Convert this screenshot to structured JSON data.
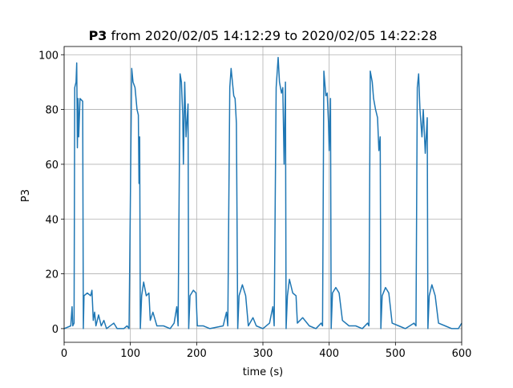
{
  "chart_data": {
    "type": "line",
    "title": [
      "P3",
      "from 2020/02/05 14:12:29 to 2020/02/05 14:22:28"
    ],
    "xlabel": "time (s)",
    "ylabel": "P3",
    "x": [
      0,
      10,
      12,
      13,
      15,
      16,
      18,
      19,
      20,
      21,
      22,
      24,
      28,
      29,
      30,
      35,
      40,
      42,
      44,
      46,
      48,
      52,
      56,
      60,
      64,
      75,
      80,
      90,
      95,
      98,
      102,
      104,
      107,
      110,
      112,
      113,
      114,
      115,
      117,
      120,
      124,
      128,
      130,
      134,
      140,
      150,
      160,
      166,
      170,
      172,
      175,
      177,
      179,
      180,
      182,
      184,
      187,
      188,
      190,
      195,
      199,
      201,
      210,
      220,
      240,
      245,
      247,
      250,
      252,
      254,
      256,
      258,
      260,
      262,
      264,
      269,
      274,
      278,
      285,
      290,
      300,
      310,
      315,
      317,
      320,
      323,
      325,
      328,
      330,
      332,
      334,
      335,
      337,
      340,
      345,
      350,
      352,
      360,
      370,
      380,
      388,
      390,
      392,
      395,
      397,
      399,
      400,
      402,
      403,
      405,
      410,
      415,
      420,
      430,
      440,
      450,
      458,
      460,
      462,
      465,
      467,
      470,
      473,
      475,
      477,
      478,
      480,
      485,
      490,
      495,
      505,
      515,
      528,
      531,
      533,
      535,
      537,
      540,
      542,
      545,
      548,
      549,
      551,
      555,
      560,
      565,
      575,
      585,
      595,
      600
    ],
    "values": [
      0,
      1,
      8,
      1,
      2,
      88,
      90,
      97,
      66,
      84,
      70,
      84,
      83,
      0,
      12,
      13,
      12,
      14,
      3,
      6,
      1,
      5,
      1,
      3,
      0,
      2,
      0,
      0,
      1,
      0,
      95,
      90,
      88,
      80,
      78,
      53,
      70,
      0,
      12,
      17,
      12,
      13,
      3,
      6,
      1,
      1,
      0,
      2,
      8,
      1,
      93,
      90,
      78,
      60,
      90,
      70,
      82,
      0,
      12,
      14,
      13,
      1,
      1,
      0,
      1,
      6,
      1,
      88,
      95,
      90,
      85,
      84,
      75,
      0,
      12,
      16,
      12,
      1,
      4,
      1,
      0,
      2,
      8,
      1,
      88,
      99,
      90,
      86,
      88,
      60,
      90,
      0,
      12,
      18,
      13,
      12,
      2,
      4,
      1,
      0,
      2,
      1,
      94,
      85,
      86,
      75,
      65,
      84,
      0,
      13,
      15,
      13,
      3,
      1,
      1,
      0,
      2,
      1,
      94,
      90,
      84,
      80,
      77,
      65,
      70,
      0,
      12,
      15,
      13,
      2,
      1,
      0,
      2,
      1,
      88,
      93,
      80,
      70,
      80,
      64,
      77,
      0,
      12,
      16,
      12,
      2,
      1,
      0,
      0,
      2
    ],
    "color": "#1f77b4",
    "xlim": [
      0,
      600
    ],
    "xticks": [
      0,
      100,
      200,
      300,
      400,
      500,
      600
    ],
    "ylim": [
      -5,
      103
    ],
    "yticks": [
      0,
      20,
      40,
      60,
      80,
      100
    ],
    "grid": true
  }
}
